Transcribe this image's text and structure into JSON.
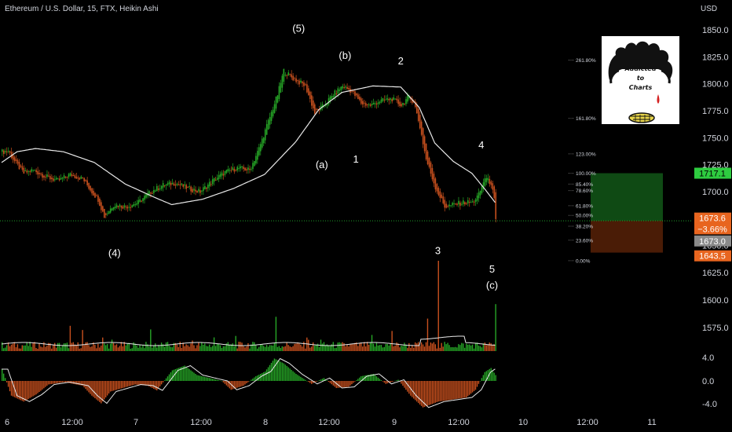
{
  "header": {
    "title": "Ethereum / U.S. Dollar, 15, FTX, Heikin Ashi",
    "currency": "USD"
  },
  "logo": {
    "line1": "Addicted",
    "line2": "to",
    "line3": "Charts"
  },
  "colors": {
    "up": "#26a626",
    "down": "#c8501e",
    "background": "#000000",
    "text": "#d1d4dc",
    "green_tag": "#2ecc40",
    "orange_tag": "#e8651f",
    "grey_tag": "#8a8a8a",
    "green_zone": "#0f4a14",
    "red_zone": "#4a1c06",
    "dotted_line": "#1f9e2a"
  },
  "chart_data": [
    {
      "type": "candlestick",
      "title": "Ethereum / U.S. Dollar, 15, FTX, Heikin Ashi",
      "y_unit": "USD",
      "ylim": [
        1607,
        1862
      ],
      "y_ticks": [
        1625.0,
        1650.0,
        1675.0,
        1700.0,
        1725.0,
        1750.0,
        1775.0,
        1800.0,
        1825.0,
        1850.0
      ],
      "x_ticks": [
        "6",
        "12:00",
        "7",
        "12:00",
        "8",
        "12:00",
        "9",
        "12:00",
        "10",
        "12:00",
        "11"
      ],
      "price_path": [
        {
          "bar": 0,
          "price": 1737
        },
        {
          "bar": 4,
          "price": 1738
        },
        {
          "bar": 8,
          "price": 1728
        },
        {
          "bar": 14,
          "price": 1717
        },
        {
          "bar": 20,
          "price": 1720
        },
        {
          "bar": 28,
          "price": 1714
        },
        {
          "bar": 36,
          "price": 1710
        },
        {
          "bar": 44,
          "price": 1716
        },
        {
          "bar": 52,
          "price": 1712
        },
        {
          "bar": 58,
          "price": 1700
        },
        {
          "bar": 62,
          "price": 1693
        },
        {
          "bar": 66,
          "price": 1677
        },
        {
          "bar": 72,
          "price": 1688
        },
        {
          "bar": 80,
          "price": 1686
        },
        {
          "bar": 88,
          "price": 1690
        },
        {
          "bar": 96,
          "price": 1700
        },
        {
          "bar": 104,
          "price": 1706
        },
        {
          "bar": 112,
          "price": 1708
        },
        {
          "bar": 120,
          "price": 1703
        },
        {
          "bar": 128,
          "price": 1700
        },
        {
          "bar": 136,
          "price": 1710
        },
        {
          "bar": 144,
          "price": 1718
        },
        {
          "bar": 152,
          "price": 1722
        },
        {
          "bar": 160,
          "price": 1720
        },
        {
          "bar": 166,
          "price": 1740
        },
        {
          "bar": 172,
          "price": 1765
        },
        {
          "bar": 178,
          "price": 1790
        },
        {
          "bar": 182,
          "price": 1812
        },
        {
          "bar": 188,
          "price": 1805
        },
        {
          "bar": 196,
          "price": 1798
        },
        {
          "bar": 202,
          "price": 1773
        },
        {
          "bar": 208,
          "price": 1780
        },
        {
          "bar": 214,
          "price": 1790
        },
        {
          "bar": 220,
          "price": 1798
        },
        {
          "bar": 226,
          "price": 1793
        },
        {
          "bar": 232,
          "price": 1782
        },
        {
          "bar": 238,
          "price": 1780
        },
        {
          "bar": 244,
          "price": 1784
        },
        {
          "bar": 252,
          "price": 1786
        },
        {
          "bar": 258,
          "price": 1780
        },
        {
          "bar": 262,
          "price": 1787
        },
        {
          "bar": 266,
          "price": 1784
        },
        {
          "bar": 270,
          "price": 1760
        },
        {
          "bar": 274,
          "price": 1730
        },
        {
          "bar": 280,
          "price": 1704
        },
        {
          "bar": 286,
          "price": 1686
        },
        {
          "bar": 292,
          "price": 1688
        },
        {
          "bar": 298,
          "price": 1690
        },
        {
          "bar": 304,
          "price": 1690
        },
        {
          "bar": 308,
          "price": 1697
        },
        {
          "bar": 312,
          "price": 1713
        },
        {
          "bar": 316,
          "price": 1708
        },
        {
          "bar": 318,
          "price": 1692
        },
        {
          "bar": 319,
          "price": 1673
        }
      ],
      "ma_path": [
        {
          "bar": 0,
          "price": 1727
        },
        {
          "bar": 10,
          "price": 1737
        },
        {
          "bar": 22,
          "price": 1740
        },
        {
          "bar": 40,
          "price": 1737
        },
        {
          "bar": 60,
          "price": 1727
        },
        {
          "bar": 80,
          "price": 1707
        },
        {
          "bar": 100,
          "price": 1694
        },
        {
          "bar": 110,
          "price": 1688
        },
        {
          "bar": 130,
          "price": 1693
        },
        {
          "bar": 150,
          "price": 1703
        },
        {
          "bar": 170,
          "price": 1716
        },
        {
          "bar": 190,
          "price": 1746
        },
        {
          "bar": 205,
          "price": 1776
        },
        {
          "bar": 220,
          "price": 1792
        },
        {
          "bar": 240,
          "price": 1798
        },
        {
          "bar": 258,
          "price": 1797
        },
        {
          "bar": 270,
          "price": 1778
        },
        {
          "bar": 280,
          "price": 1745
        },
        {
          "bar": 292,
          "price": 1728
        },
        {
          "bar": 304,
          "price": 1717
        },
        {
          "bar": 312,
          "price": 1703
        },
        {
          "bar": 319,
          "price": 1690
        }
      ],
      "annotations": [
        {
          "label": "(5)",
          "bar": 192,
          "price": 1848
        },
        {
          "label": "(b)",
          "bar": 222,
          "price": 1823
        },
        {
          "label": "2",
          "bar": 258,
          "price": 1818
        },
        {
          "label": "(a)",
          "bar": 207,
          "price": 1722
        },
        {
          "label": "1",
          "bar": 229,
          "price": 1727
        },
        {
          "label": "4",
          "bar": 310,
          "price": 1740
        },
        {
          "label": "(4)",
          "bar": 73,
          "price": 1640
        },
        {
          "label": "3",
          "bar": 282,
          "price": 1642
        },
        {
          "label": "5",
          "bar": 317,
          "price": 1625
        },
        {
          "label": "(c)",
          "bar": 317,
          "price": 1610
        }
      ],
      "fib_levels": [
        {
          "label": "261.80%",
          "price": 1822
        },
        {
          "label": "161.80%",
          "price": 1768
        },
        {
          "label": "123.00%",
          "price": 1735
        },
        {
          "label": "100.00%",
          "price": 1717
        },
        {
          "label": "85.40%",
          "price": 1707
        },
        {
          "label": "78.60%",
          "price": 1701
        },
        {
          "label": "61.80%",
          "price": 1687
        },
        {
          "label": "50.00%",
          "price": 1678
        },
        {
          "label": "38.20%",
          "price": 1668
        },
        {
          "label": "23.60%",
          "price": 1655
        },
        {
          "label": "0.00%",
          "price": 1636
        }
      ],
      "price_tags": [
        {
          "text": "1717.1",
          "price": 1717.1,
          "style": "green"
        },
        {
          "text": "1673.6",
          "price": 1675.5,
          "style": "orange"
        },
        {
          "text": "−3.66%",
          "price": 1665.5,
          "style": "orange"
        },
        {
          "text": "1673.0",
          "price": 1654.3,
          "style": "grey"
        },
        {
          "text": "1643.5",
          "price": 1640.5,
          "style": "orange"
        }
      ],
      "current_price": 1673.0,
      "position_zone": {
        "top": 1717.1,
        "entry": 1673.0,
        "bottom": 1643.5
      }
    },
    {
      "type": "bar",
      "title": "",
      "y_ticks": [
        1600.0,
        1575.0
      ],
      "description_values": "relative volume heights, spike at bar 282",
      "spikes": [
        {
          "bar": 282,
          "value": 1.0
        },
        {
          "bar": 319,
          "value": 0.52
        },
        {
          "bar": 177,
          "value": 0.38
        },
        {
          "bar": 275,
          "value": 0.36
        },
        {
          "bar": 44,
          "value": 0.28
        },
        {
          "bar": 96,
          "value": 0.24
        }
      ]
    },
    {
      "type": "bar",
      "title": "",
      "y_ticks": [
        4.0,
        0.0,
        -4.0
      ],
      "ylim": [
        -5.1,
        5.1
      ],
      "histogram_path": [
        {
          "bar": 0,
          "value": 2.0
        },
        {
          "bar": 6,
          "value": -2.5
        },
        {
          "bar": 14,
          "value": -3.5
        },
        {
          "bar": 22,
          "value": -2.3
        },
        {
          "bar": 30,
          "value": -0.6
        },
        {
          "bar": 40,
          "value": -0.2
        },
        {
          "bar": 52,
          "value": -0.8
        },
        {
          "bar": 58,
          "value": -2.5
        },
        {
          "bar": 64,
          "value": -3.8
        },
        {
          "bar": 70,
          "value": -1.8
        },
        {
          "bar": 78,
          "value": -1.2
        },
        {
          "bar": 86,
          "value": -0.6
        },
        {
          "bar": 94,
          "value": -0.8
        },
        {
          "bar": 100,
          "value": -1.6
        },
        {
          "bar": 110,
          "value": 1.8
        },
        {
          "bar": 118,
          "value": 2.6
        },
        {
          "bar": 126,
          "value": 1.0
        },
        {
          "bar": 134,
          "value": 0.5
        },
        {
          "bar": 142,
          "value": 0.0
        },
        {
          "bar": 148,
          "value": -1.5
        },
        {
          "bar": 156,
          "value": -0.8
        },
        {
          "bar": 164,
          "value": 0.8
        },
        {
          "bar": 170,
          "value": 1.6
        },
        {
          "bar": 176,
          "value": 3.8
        },
        {
          "bar": 182,
          "value": 3.0
        },
        {
          "bar": 190,
          "value": 1.2
        },
        {
          "bar": 200,
          "value": -0.5
        },
        {
          "bar": 208,
          "value": 0.5
        },
        {
          "bar": 216,
          "value": -1.2
        },
        {
          "bar": 224,
          "value": -1.0
        },
        {
          "bar": 232,
          "value": 0.8
        },
        {
          "bar": 240,
          "value": 1.2
        },
        {
          "bar": 248,
          "value": -0.5
        },
        {
          "bar": 256,
          "value": 0.2
        },
        {
          "bar": 264,
          "value": -2.5
        },
        {
          "bar": 272,
          "value": -4.5
        },
        {
          "bar": 282,
          "value": -3.5
        },
        {
          "bar": 290,
          "value": -3.2
        },
        {
          "bar": 300,
          "value": -2.8
        },
        {
          "bar": 306,
          "value": -1.5
        },
        {
          "bar": 312,
          "value": 1.5
        },
        {
          "bar": 316,
          "value": 2.2
        },
        {
          "bar": 319,
          "value": 1.0
        }
      ]
    }
  ]
}
